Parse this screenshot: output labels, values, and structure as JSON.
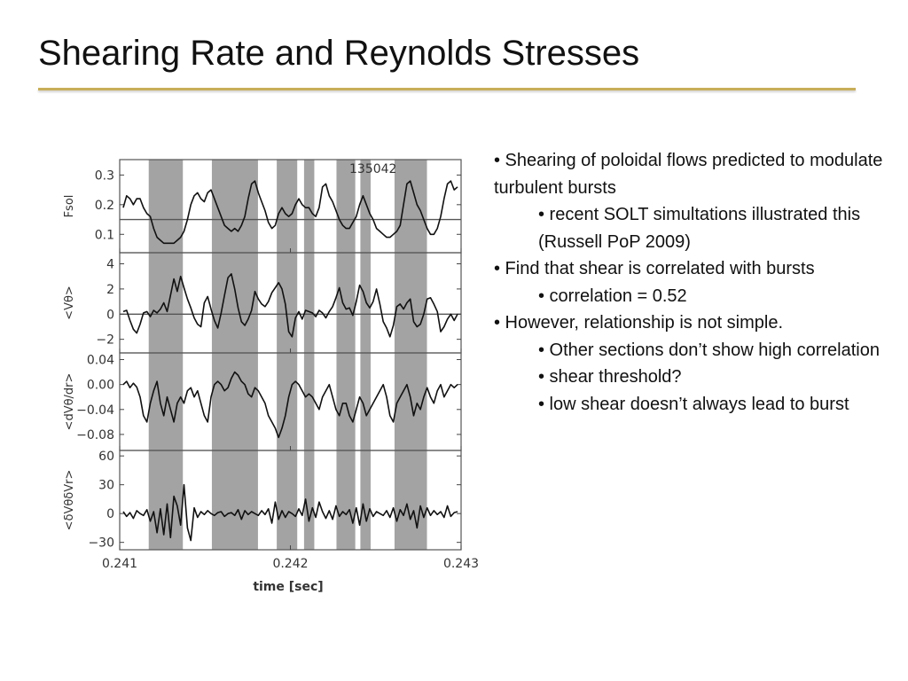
{
  "slide": {
    "title": "Shearing Rate and Reynolds Stresses"
  },
  "bullets": [
    {
      "level": 1,
      "text": "• Shearing of poloidal flows predicted to modulate turbulent bursts"
    },
    {
      "level": 2,
      "text": "• recent SOLT simultations illustrated this (Russell PoP 2009)"
    },
    {
      "level": 1,
      "text": "• Find that shear is correlated with bursts"
    },
    {
      "level": 2,
      "text": "• correlation = 0.52"
    },
    {
      "level": 1,
      "text": "• However, relationship is not simple."
    },
    {
      "level": 2,
      "text": "• Other sections don’t show high correlation"
    },
    {
      "level": 2,
      "text": "• shear threshold?"
    },
    {
      "level": 2,
      "text": "• low shear doesn’t always lead to burst"
    }
  ],
  "chart_data": {
    "type": "line",
    "shot_label": "135042",
    "xlabel": "time [sec]",
    "x_ticks": [
      "0.241",
      "0.242",
      "0.243"
    ],
    "xlim": [
      0.241,
      0.243
    ],
    "shaded_intervals": [
      [
        0.24117,
        0.24137
      ],
      [
        0.24154,
        0.24181
      ],
      [
        0.24192,
        0.24204
      ],
      [
        0.24208,
        0.24214
      ],
      [
        0.24227,
        0.24238
      ],
      [
        0.24241,
        0.24247
      ],
      [
        0.24261,
        0.2428
      ]
    ],
    "shade_color": "#A3A3A3",
    "panels": [
      {
        "ylabel": "Fsol",
        "ylim": [
          0.05,
          0.34
        ],
        "yticks": [
          "0.3",
          "0.2",
          "0.1"
        ],
        "ytick_values": [
          0.3,
          0.2,
          0.1
        ],
        "ref_line": 0.15,
        "values": [
          0.19,
          0.23,
          0.22,
          0.2,
          0.22,
          0.22,
          0.19,
          0.17,
          0.16,
          0.12,
          0.09,
          0.08,
          0.07,
          0.07,
          0.07,
          0.07,
          0.08,
          0.09,
          0.11,
          0.15,
          0.2,
          0.23,
          0.24,
          0.22,
          0.21,
          0.24,
          0.25,
          0.22,
          0.19,
          0.16,
          0.13,
          0.12,
          0.11,
          0.12,
          0.11,
          0.13,
          0.16,
          0.22,
          0.27,
          0.28,
          0.24,
          0.21,
          0.18,
          0.14,
          0.12,
          0.13,
          0.17,
          0.19,
          0.17,
          0.16,
          0.17,
          0.2,
          0.22,
          0.2,
          0.19,
          0.19,
          0.17,
          0.16,
          0.19,
          0.26,
          0.27,
          0.23,
          0.21,
          0.18,
          0.15,
          0.13,
          0.12,
          0.12,
          0.14,
          0.16,
          0.2,
          0.23,
          0.2,
          0.17,
          0.15,
          0.12,
          0.11,
          0.1,
          0.09,
          0.09,
          0.1,
          0.11,
          0.13,
          0.2,
          0.27,
          0.28,
          0.24,
          0.2,
          0.18,
          0.15,
          0.12,
          0.1,
          0.1,
          0.12,
          0.16,
          0.22,
          0.27,
          0.28,
          0.25,
          0.26
        ]
      },
      {
        "ylabel": "<Vθ>",
        "ylim": [
          -2.8,
          4.6
        ],
        "yticks": [
          "4",
          "2",
          "0",
          "−2"
        ],
        "ytick_values": [
          4,
          2,
          0,
          -2
        ],
        "ref_line": 0,
        "values": [
          0.2,
          0.3,
          -0.5,
          -1.2,
          -1.5,
          -0.8,
          0.1,
          0.2,
          -0.2,
          0.3,
          0.1,
          0.4,
          0.9,
          0.2,
          1.5,
          2.8,
          1.8,
          3.0,
          2.1,
          1.2,
          0.5,
          -0.3,
          -0.8,
          -1.0,
          0.9,
          1.4,
          0.4,
          -0.5,
          -1.1,
          0.1,
          1.5,
          2.9,
          3.2,
          2.0,
          0.5,
          -0.6,
          -0.9,
          -0.4,
          0.3,
          1.8,
          1.2,
          0.8,
          0.6,
          1.0,
          1.7,
          2.1,
          2.5,
          2.0,
          0.8,
          -1.4,
          -1.8,
          -0.3,
          0.2,
          -0.4,
          0.3,
          0.2,
          0.1,
          -0.2,
          0.3,
          0.1,
          -0.3,
          0.2,
          0.6,
          1.3,
          2.1,
          0.9,
          0.4,
          0.5,
          -0.1,
          1.0,
          2.3,
          1.8,
          0.9,
          0.5,
          1.0,
          2.0,
          0.8,
          -0.6,
          -1.1,
          -1.8,
          -0.9,
          0.6,
          0.8,
          0.4,
          0.9,
          1.2,
          -0.6,
          -1.0,
          -0.8,
          0.0,
          1.2,
          1.3,
          0.8,
          0.2,
          -1.4,
          -1.0,
          -0.4,
          0.0,
          -0.5,
          0.0
        ]
      },
      {
        "ylabel": "<dVθ/dr>",
        "ylim": [
          -0.1,
          0.045
        ],
        "yticks": [
          "0.04",
          "0.00",
          "−0.04",
          "−0.08"
        ],
        "ytick_values": [
          0.04,
          0.0,
          -0.04,
          -0.08
        ],
        "ref_line": null,
        "values": [
          0.0,
          0.005,
          -0.005,
          0.002,
          -0.004,
          -0.02,
          -0.05,
          -0.06,
          -0.03,
          -0.01,
          0.005,
          -0.03,
          -0.05,
          -0.02,
          -0.04,
          -0.06,
          -0.03,
          -0.02,
          -0.03,
          -0.01,
          -0.005,
          -0.02,
          -0.01,
          -0.03,
          -0.05,
          -0.06,
          -0.02,
          0.0,
          0.005,
          0.0,
          -0.01,
          -0.005,
          0.01,
          0.02,
          0.015,
          0.005,
          0.0,
          -0.015,
          -0.02,
          -0.005,
          -0.01,
          -0.02,
          -0.03,
          -0.05,
          -0.06,
          -0.07,
          -0.085,
          -0.07,
          -0.05,
          -0.02,
          0.0,
          0.005,
          0.0,
          -0.01,
          -0.02,
          -0.015,
          -0.02,
          -0.03,
          -0.04,
          -0.02,
          -0.01,
          0.0,
          -0.02,
          -0.04,
          -0.05,
          -0.03,
          -0.03,
          -0.05,
          -0.06,
          -0.04,
          -0.02,
          -0.03,
          -0.05,
          -0.04,
          -0.03,
          -0.02,
          -0.01,
          0.0,
          -0.02,
          -0.05,
          -0.06,
          -0.03,
          -0.02,
          -0.01,
          0.0,
          -0.02,
          -0.05,
          -0.03,
          -0.04,
          -0.02,
          -0.005,
          -0.02,
          -0.03,
          -0.01,
          0.0,
          -0.02,
          -0.01,
          0.0,
          -0.005,
          0.0
        ]
      },
      {
        "ylabel": "<δVθδVr>",
        "ylim": [
          -34,
          62
        ],
        "yticks": [
          "60",
          "30",
          "0",
          "−30"
        ],
        "ytick_values": [
          60,
          30,
          0,
          -30
        ],
        "ref_line": null,
        "values": [
          2,
          -3,
          1,
          -5,
          3,
          0,
          -2,
          4,
          -8,
          2,
          -20,
          5,
          -22,
          10,
          -25,
          18,
          8,
          -12,
          30,
          -15,
          -28,
          6,
          -4,
          2,
          -1,
          3,
          0,
          -2,
          1,
          2,
          -3,
          0,
          1,
          -2,
          4,
          -6,
          3,
          -1,
          2,
          0,
          -2,
          3,
          -1,
          5,
          -10,
          12,
          -6,
          3,
          -4,
          2,
          0,
          -3,
          5,
          -2,
          15,
          -8,
          6,
          -4,
          12,
          2,
          -5,
          3,
          -6,
          8,
          -3,
          2,
          -1,
          4,
          -10,
          6,
          -12,
          10,
          -8,
          5,
          -3,
          2,
          0,
          -2,
          3,
          -4,
          6,
          -8,
          4,
          -2,
          10,
          -6,
          3,
          -15,
          8,
          -4,
          6,
          -2,
          3,
          -1,
          2,
          -4,
          8,
          -3,
          1,
          2
        ]
      }
    ]
  }
}
